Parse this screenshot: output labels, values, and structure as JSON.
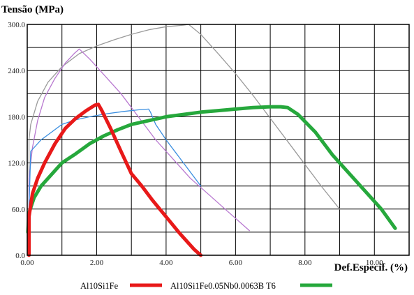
{
  "chart_data": {
    "type": "line",
    "ylabel": "Tensão (MPa)",
    "xlabel": "Def.Especif. (%)",
    "xlim": [
      0,
      11
    ],
    "ylim": [
      0,
      300
    ],
    "x_ticks": [
      "0.00",
      "2.00",
      "4.00",
      "6.00",
      "8.00",
      "10.00"
    ],
    "y_ticks": [
      "0.0",
      "60.0",
      "120.0",
      "180.0",
      "240.0",
      "300.0"
    ],
    "x_tick_values": [
      0,
      2,
      4,
      6,
      8,
      10
    ],
    "y_tick_values": [
      0,
      60,
      120,
      180,
      240,
      300
    ],
    "grid": true,
    "legend_position": "bottom",
    "series": [
      {
        "name": "Al10Si1Fe",
        "color": "#e81919",
        "bold": true,
        "in_legend": true,
        "points": [
          [
            0.05,
            0
          ],
          [
            0.05,
            50
          ],
          [
            0.15,
            80
          ],
          [
            0.3,
            100
          ],
          [
            0.5,
            120
          ],
          [
            0.8,
            145
          ],
          [
            1.1,
            165
          ],
          [
            1.4,
            178
          ],
          [
            1.7,
            188
          ],
          [
            1.95,
            195
          ],
          [
            2.05,
            196
          ],
          [
            2.15,
            188
          ],
          [
            2.4,
            165
          ],
          [
            2.7,
            135
          ],
          [
            3.0,
            106
          ],
          [
            3.3,
            90
          ],
          [
            3.6,
            72
          ],
          [
            4.0,
            50
          ],
          [
            4.4,
            28
          ],
          [
            4.8,
            8
          ],
          [
            5.0,
            0
          ]
        ]
      },
      {
        "name": "Al10Si1Fe0.05Nb0.0063B T6",
        "color": "#26a83c",
        "bold": true,
        "in_legend": true,
        "points": [
          [
            0.02,
            30
          ],
          [
            0.05,
            55
          ],
          [
            0.2,
            75
          ],
          [
            0.4,
            90
          ],
          [
            0.7,
            105
          ],
          [
            1.0,
            120
          ],
          [
            1.4,
            132
          ],
          [
            1.8,
            145
          ],
          [
            2.2,
            155
          ],
          [
            2.6,
            163
          ],
          [
            3.0,
            170
          ],
          [
            3.5,
            175
          ],
          [
            4.0,
            180
          ],
          [
            4.5,
            183
          ],
          [
            5.0,
            186
          ],
          [
            5.5,
            188
          ],
          [
            6.0,
            190
          ],
          [
            6.5,
            192
          ],
          [
            7.0,
            193
          ],
          [
            7.3,
            193
          ],
          [
            7.5,
            192
          ],
          [
            7.8,
            183
          ],
          [
            8.3,
            160
          ],
          [
            8.8,
            130
          ],
          [
            9.3,
            105
          ],
          [
            9.8,
            80
          ],
          [
            10.2,
            60
          ],
          [
            10.6,
            35
          ]
        ]
      },
      {
        "name": "",
        "color": "#9a9a9a",
        "bold": false,
        "in_legend": false,
        "points": [
          [
            0.05,
            0
          ],
          [
            0.05,
            150
          ],
          [
            0.1,
            170
          ],
          [
            0.3,
            200
          ],
          [
            0.6,
            225
          ],
          [
            1.0,
            245
          ],
          [
            1.5,
            262
          ],
          [
            2.0,
            272
          ],
          [
            2.5,
            280
          ],
          [
            3.0,
            287
          ],
          [
            3.5,
            293
          ],
          [
            4.0,
            297
          ],
          [
            4.5,
            299
          ],
          [
            4.65,
            300
          ],
          [
            5.0,
            287
          ],
          [
            5.5,
            262
          ],
          [
            6.0,
            236
          ],
          [
            6.5,
            208
          ],
          [
            7.0,
            178
          ],
          [
            7.5,
            148
          ],
          [
            8.0,
            118
          ],
          [
            8.5,
            88
          ],
          [
            9.0,
            60
          ]
        ]
      },
      {
        "name": "",
        "color": "#b878d0",
        "bold": false,
        "in_legend": false,
        "points": [
          [
            0.05,
            0
          ],
          [
            0.05,
            100
          ],
          [
            0.15,
            140
          ],
          [
            0.3,
            175
          ],
          [
            0.5,
            205
          ],
          [
            0.8,
            230
          ],
          [
            1.1,
            250
          ],
          [
            1.35,
            262
          ],
          [
            1.5,
            268
          ],
          [
            1.8,
            255
          ],
          [
            2.2,
            235
          ],
          [
            2.7,
            210
          ],
          [
            3.2,
            180
          ],
          [
            3.7,
            150
          ],
          [
            4.2,
            125
          ],
          [
            4.7,
            100
          ],
          [
            5.2,
            80
          ],
          [
            5.7,
            60
          ],
          [
            6.2,
            40
          ],
          [
            6.4,
            32
          ]
        ]
      },
      {
        "name": "",
        "color": "#3a8ee0",
        "bold": false,
        "in_legend": false,
        "points": [
          [
            0.05,
            0
          ],
          [
            0.05,
            60
          ],
          [
            0.1,
            135
          ],
          [
            0.2,
            140
          ],
          [
            0.4,
            150
          ],
          [
            0.7,
            160
          ],
          [
            1.0,
            170
          ],
          [
            1.4,
            176
          ],
          [
            1.8,
            180
          ],
          [
            2.3,
            184
          ],
          [
            2.8,
            187
          ],
          [
            3.2,
            189
          ],
          [
            3.5,
            190
          ],
          [
            3.55,
            186
          ],
          [
            3.7,
            170
          ],
          [
            4.0,
            150
          ],
          [
            4.5,
            120
          ],
          [
            5.0,
            90
          ]
        ]
      }
    ]
  }
}
